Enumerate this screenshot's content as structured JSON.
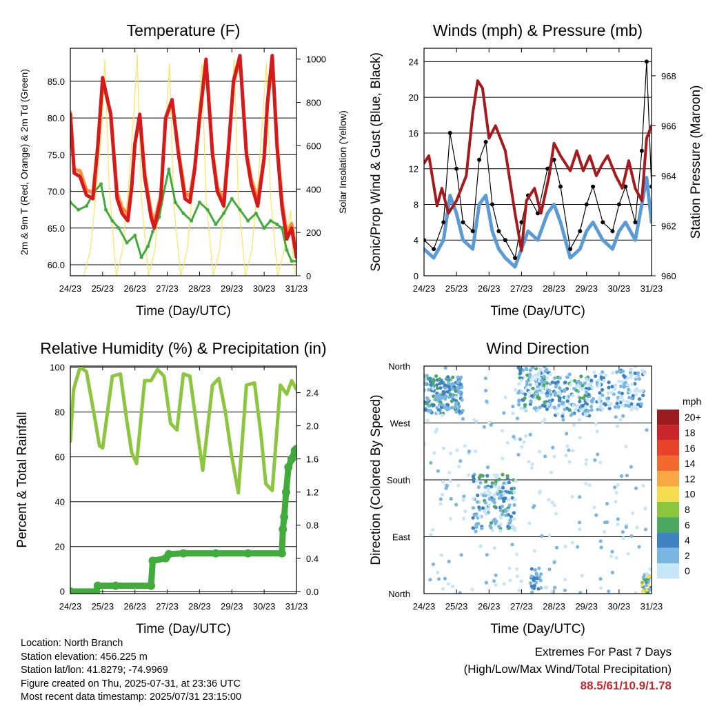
{
  "colors": {
    "t2m": "#d7191c",
    "t9m": "#fd8d3c",
    "td": "#41ab3c",
    "solar": "#ffe35c",
    "gust": "#000000",
    "wind": "#5b9bd5",
    "pressure": "#a6191c",
    "rh": "#8cc63f",
    "precip": "#41ab3c",
    "extremes": "#c0282d"
  },
  "legend": {
    "unit": "mph",
    "levels": [
      "20+",
      "18",
      "16",
      "14",
      "12",
      "10",
      "8",
      "6",
      "4",
      "2",
      "0"
    ],
    "colors": [
      "#9b1b1e",
      "#c9252b",
      "#e8422b",
      "#f26a2d",
      "#f9a743",
      "#f6dc4f",
      "#8cc63f",
      "#4aa860",
      "#3f82c1",
      "#7ab6e3",
      "#c6e6f7"
    ]
  },
  "chart_data": [
    {
      "type": "line",
      "id": "temperature",
      "title": "Temperature (F)",
      "xlabel": "Time (Day/UTC)",
      "ylabel": "2m & 9m T (Red, Orange) & 2m Td (Green)",
      "y2label": "Solar Insolation (Yellow)",
      "xticks": [
        "24/23",
        "25/23",
        "26/23",
        "27/23",
        "28/23",
        "29/23",
        "30/23",
        "31/23"
      ],
      "xlim": [
        0,
        7
      ],
      "ylim": [
        58.5,
        89.5
      ],
      "yticks": [
        "60.0",
        "65.0",
        "70.0",
        "75.0",
        "80.0",
        "85.0"
      ],
      "y2lim": [
        0,
        1050
      ],
      "y2ticks": [
        "0",
        "200",
        "400",
        "600",
        "800",
        "1000"
      ],
      "grid": true,
      "series": [
        {
          "key": "t2m",
          "x": [
            0,
            0.12,
            0.3,
            0.5,
            0.7,
            0.85,
            1.0,
            1.25,
            1.45,
            1.6,
            1.78,
            1.9,
            2.0,
            2.15,
            2.3,
            2.5,
            2.6,
            2.8,
            2.95,
            3.15,
            3.35,
            3.55,
            3.7,
            3.85,
            4.0,
            4.2,
            4.4,
            4.55,
            4.75,
            4.9,
            5.05,
            5.25,
            5.45,
            5.6,
            5.8,
            6.0,
            6.1,
            6.25,
            6.4,
            6.55,
            6.7,
            6.85,
            7.0
          ],
          "y": [
            80.5,
            72.5,
            72.0,
            69.5,
            69.0,
            76.0,
            85.5,
            80.5,
            69.0,
            67.0,
            66.0,
            70.5,
            76.5,
            80.5,
            72.0,
            66.5,
            65.0,
            69.0,
            80.0,
            82.5,
            75.0,
            69.0,
            68.5,
            73.0,
            80.0,
            88.0,
            75.0,
            70.0,
            68.0,
            76.0,
            85.0,
            88.5,
            75.0,
            71.0,
            68.0,
            74.5,
            82.0,
            88.5,
            76.0,
            68.0,
            63.5,
            65.0,
            61.0
          ]
        },
        {
          "key": "t9m",
          "x": [
            0,
            0.12,
            0.3,
            0.5,
            0.7,
            0.85,
            1.0,
            1.25,
            1.45,
            1.6,
            1.78,
            1.9,
            2.0,
            2.15,
            2.3,
            2.5,
            2.6,
            2.8,
            2.95,
            3.15,
            3.35,
            3.55,
            3.7,
            3.85,
            4.0,
            4.2,
            4.4,
            4.55,
            4.75,
            4.9,
            5.05,
            5.25,
            5.45,
            5.6,
            5.8,
            6.0,
            6.1,
            6.25,
            6.4,
            6.55,
            6.7,
            6.85,
            7.0
          ],
          "y": [
            80.8,
            73.0,
            72.8,
            70.2,
            69.8,
            76.2,
            85.0,
            80.6,
            69.8,
            67.8,
            66.8,
            71.0,
            76.5,
            80.3,
            72.6,
            67.2,
            65.8,
            69.5,
            79.8,
            82.2,
            75.4,
            69.8,
            69.3,
            73.3,
            79.8,
            87.5,
            75.4,
            70.6,
            68.8,
            76.2,
            84.7,
            88.0,
            75.4,
            71.7,
            68.8,
            74.7,
            81.7,
            88.0,
            76.4,
            68.8,
            64.3,
            65.6,
            61.5
          ]
        },
        {
          "key": "td",
          "x": [
            0,
            0.25,
            0.5,
            0.75,
            0.95,
            1.1,
            1.3,
            1.5,
            1.75,
            2.0,
            2.2,
            2.4,
            2.55,
            2.75,
            2.9,
            3.05,
            3.25,
            3.5,
            3.75,
            4.0,
            4.25,
            4.5,
            4.75,
            5.0,
            5.25,
            5.5,
            5.75,
            6.0,
            6.2,
            6.4,
            6.55,
            6.7,
            6.85,
            7.0
          ],
          "y": [
            68.5,
            67.5,
            68.0,
            70.0,
            71.0,
            67.5,
            66.0,
            65.0,
            63.0,
            64.0,
            61.0,
            62.5,
            64.5,
            66.5,
            70.0,
            73.0,
            68.5,
            67.0,
            66.0,
            68.5,
            67.5,
            65.5,
            67.0,
            69.0,
            67.5,
            66.0,
            67.0,
            65.0,
            66.0,
            65.5,
            65.0,
            62.0,
            60.5,
            60.5
          ]
        },
        {
          "key": "solar",
          "axis": "y2",
          "x": [
            0,
            0.42,
            0.62,
            0.82,
            0.97,
            1.07,
            1.2,
            1.42,
            1.62,
            1.82,
            1.97,
            2.07,
            2.2,
            2.42,
            2.62,
            2.82,
            2.97,
            3.07,
            3.2,
            3.42,
            3.62,
            3.82,
            3.97,
            4.07,
            4.2,
            4.42,
            4.62,
            4.82,
            4.97,
            5.07,
            5.2,
            5.42,
            5.62,
            5.82,
            5.97,
            6.07,
            6.2,
            6.42,
            6.62,
            6.82,
            6.9,
            7.0
          ],
          "y": [
            0,
            0,
            120,
            420,
            680,
            1000,
            420,
            0,
            120,
            450,
            760,
            1020,
            360,
            0,
            120,
            450,
            750,
            980,
            330,
            0,
            120,
            450,
            760,
            980,
            360,
            0,
            120,
            450,
            760,
            1000,
            360,
            0,
            120,
            450,
            760,
            980,
            360,
            0,
            120,
            300,
            60,
            0
          ]
        }
      ]
    },
    {
      "type": "line",
      "id": "winds",
      "title": "Winds (mph) & Pressure (mb)",
      "xlabel": "Time (Day/UTC)",
      "ylabel": "Sonic/Prop Wind & Gust (Blue, Black)",
      "y2label": "Station Pressure (Maroon)",
      "xticks": [
        "24/23",
        "25/23",
        "26/23",
        "27/23",
        "28/23",
        "29/23",
        "30/23",
        "31/23"
      ],
      "xlim": [
        0,
        7
      ],
      "ylim": [
        0,
        25.5
      ],
      "yticks": [
        "0",
        "4",
        "8",
        "12",
        "16",
        "20",
        "24"
      ],
      "y2lim": [
        960,
        969.1
      ],
      "y2ticks": [
        "960",
        "962",
        "964",
        "966",
        "968"
      ],
      "grid": true,
      "series": [
        {
          "key": "wind",
          "x": [
            0,
            0.3,
            0.6,
            0.8,
            1.0,
            1.2,
            1.5,
            1.7,
            1.9,
            2.1,
            2.3,
            2.5,
            2.8,
            3.0,
            3.2,
            3.5,
            3.8,
            4.0,
            4.2,
            4.5,
            4.8,
            5.0,
            5.2,
            5.5,
            5.8,
            6.0,
            6.2,
            6.5,
            6.7,
            6.85,
            7.0
          ],
          "y": [
            3,
            2,
            4,
            9,
            7,
            4,
            3,
            8,
            9,
            5,
            3,
            2,
            1,
            3,
            5,
            4,
            7,
            8,
            6,
            2,
            3,
            5,
            6,
            4,
            3,
            5,
            6,
            4,
            8,
            11,
            6
          ]
        },
        {
          "key": "gust",
          "x": [
            0,
            0.3,
            0.6,
            0.8,
            1.0,
            1.2,
            1.5,
            1.7,
            1.9,
            2.1,
            2.3,
            2.5,
            2.8,
            3.0,
            3.2,
            3.5,
            3.8,
            4.0,
            4.2,
            4.5,
            4.8,
            5.0,
            5.2,
            5.5,
            5.8,
            6.0,
            6.2,
            6.5,
            6.7,
            6.85,
            7.0
          ],
          "y": [
            4,
            3,
            6,
            16,
            12,
            6,
            5,
            13,
            15,
            8,
            5,
            4,
            2,
            6,
            9,
            7,
            12,
            13,
            10,
            3,
            5,
            8,
            10,
            6,
            5,
            8,
            10,
            6,
            14,
            24,
            10
          ]
        },
        {
          "key": "pressure",
          "axis": "y2",
          "x": [
            0,
            0.15,
            0.4,
            0.55,
            0.75,
            1.0,
            1.3,
            1.5,
            1.65,
            1.8,
            2.0,
            2.2,
            2.5,
            2.8,
            3.0,
            3.15,
            3.4,
            3.6,
            3.85,
            4.0,
            4.2,
            4.5,
            4.7,
            4.9,
            5.1,
            5.3,
            5.5,
            5.65,
            5.9,
            6.1,
            6.3,
            6.5,
            6.7,
            6.85,
            7.0
          ],
          "y": [
            964.5,
            964.8,
            962.8,
            963.5,
            962.5,
            963.0,
            964.0,
            966.5,
            967.8,
            967.5,
            965.5,
            966.0,
            965.0,
            962.5,
            961.0,
            963.0,
            963.5,
            962.5,
            964.0,
            965.3,
            964.8,
            964.2,
            965.0,
            964.2,
            964.8,
            964.0,
            964.5,
            964.8,
            964.0,
            963.5,
            964.6,
            963.5,
            963.0,
            965.5,
            966.0
          ]
        }
      ]
    },
    {
      "type": "line",
      "id": "humidity",
      "title": "Relative Humidity (%) & Precipitation (in)",
      "xlabel": "Time (Day/UTC)",
      "ylabel": "Percent & Total Rainfall",
      "xticks": [
        "24/23",
        "25/23",
        "26/23",
        "27/23",
        "28/23",
        "29/23",
        "30/23",
        "31/23"
      ],
      "xlim": [
        0,
        7
      ],
      "ylim": [
        -1,
        100.5
      ],
      "yticks": [
        "0",
        "20",
        "40",
        "60",
        "80",
        "100"
      ],
      "y2lim": [
        -0.026,
        2.72
      ],
      "y2ticks": [
        "0.0",
        "0.4",
        "0.8",
        "1.2",
        "1.6",
        "2.0",
        "2.4"
      ],
      "grid": true,
      "series": [
        {
          "key": "rh",
          "x": [
            0,
            0.1,
            0.3,
            0.5,
            0.75,
            0.9,
            1.0,
            1.3,
            1.55,
            1.75,
            1.9,
            2.05,
            2.3,
            2.5,
            2.7,
            2.9,
            3.1,
            3.3,
            3.5,
            3.7,
            3.9,
            4.1,
            4.4,
            4.6,
            4.8,
            5.0,
            5.2,
            5.45,
            5.7,
            5.9,
            6.05,
            6.25,
            6.5,
            6.7,
            6.85,
            7.0
          ],
          "y": [
            67,
            90,
            100,
            98,
            78,
            65,
            64,
            96,
            97,
            76,
            62,
            57,
            94,
            94,
            99,
            96,
            75,
            72,
            97,
            96,
            75,
            54,
            92,
            95,
            80,
            60,
            44,
            92,
            93,
            70,
            48,
            45,
            92,
            88,
            94,
            90
          ]
        },
        {
          "key": "precip",
          "axis": "y2",
          "x": [
            0,
            0.8,
            0.85,
            1.4,
            2.5,
            2.55,
            2.95,
            3.05,
            3.5,
            4.5,
            5.5,
            6.55,
            6.58,
            6.62,
            6.68,
            6.75,
            6.85,
            6.95,
            7.0
          ],
          "y": [
            0.0,
            0.0,
            0.07,
            0.07,
            0.07,
            0.37,
            0.4,
            0.45,
            0.46,
            0.46,
            0.46,
            0.46,
            0.75,
            0.9,
            1.2,
            1.5,
            1.6,
            1.7,
            1.72
          ]
        }
      ]
    },
    {
      "type": "scatter",
      "id": "wind-direction",
      "title": "Wind Direction",
      "xlabel": "Time (Day/UTC)",
      "ylabel": "Direction (Colored By Speed)",
      "xticks": [
        "24/23",
        "25/23",
        "26/23",
        "27/23",
        "28/23",
        "29/23",
        "30/23",
        "31/23"
      ],
      "xlim": [
        0,
        7
      ],
      "ylim": [
        0,
        360
      ],
      "yticks": [
        "North",
        "East",
        "South",
        "West",
        "North"
      ],
      "grid": true,
      "clusters": [
        {
          "x": [
            0,
            1.2
          ],
          "dir": [
            285,
            345
          ],
          "speed": [
            2,
            8
          ],
          "n": 180
        },
        {
          "x": [
            1.5,
            2.8
          ],
          "dir": [
            100,
            190
          ],
          "speed": [
            1,
            8
          ],
          "n": 150
        },
        {
          "x": [
            2.9,
            3.9
          ],
          "dir": [
            290,
            360
          ],
          "speed": [
            1,
            7
          ],
          "n": 140
        },
        {
          "x": [
            3.9,
            5.2
          ],
          "dir": [
            280,
            345
          ],
          "speed": [
            1,
            7
          ],
          "n": 140
        },
        {
          "x": [
            5.2,
            6.8
          ],
          "dir": [
            290,
            355
          ],
          "speed": [
            1,
            6
          ],
          "n": 120
        },
        {
          "x": [
            3.3,
            3.6
          ],
          "dir": [
            0,
            45
          ],
          "speed": [
            3,
            6
          ],
          "n": 25
        },
        {
          "x": [
            6.7,
            7.0
          ],
          "dir": [
            0,
            30
          ],
          "speed": [
            3,
            12
          ],
          "n": 30
        },
        {
          "x": [
            0,
            7.0
          ],
          "dir": [
            0,
            360
          ],
          "speed": [
            0,
            4
          ],
          "n": 260
        }
      ]
    }
  ],
  "info": {
    "location": "Location: North Branch",
    "elevation": "Station elevation: 456.225 m",
    "latlon": "Station lat/lon: 41.8279; -74.9969",
    "created": "Figure created on Thu, 2025-07-31, at 23:36 UTC",
    "recent": "Most recent data timestamp: 2025/07/31 23:15:00"
  },
  "extremes": {
    "title": "Extremes For Past 7 Days",
    "subtitle": "(High/Low/Max Wind/Total Precipitation)",
    "values": "88.5/61/10.9/1.78"
  }
}
